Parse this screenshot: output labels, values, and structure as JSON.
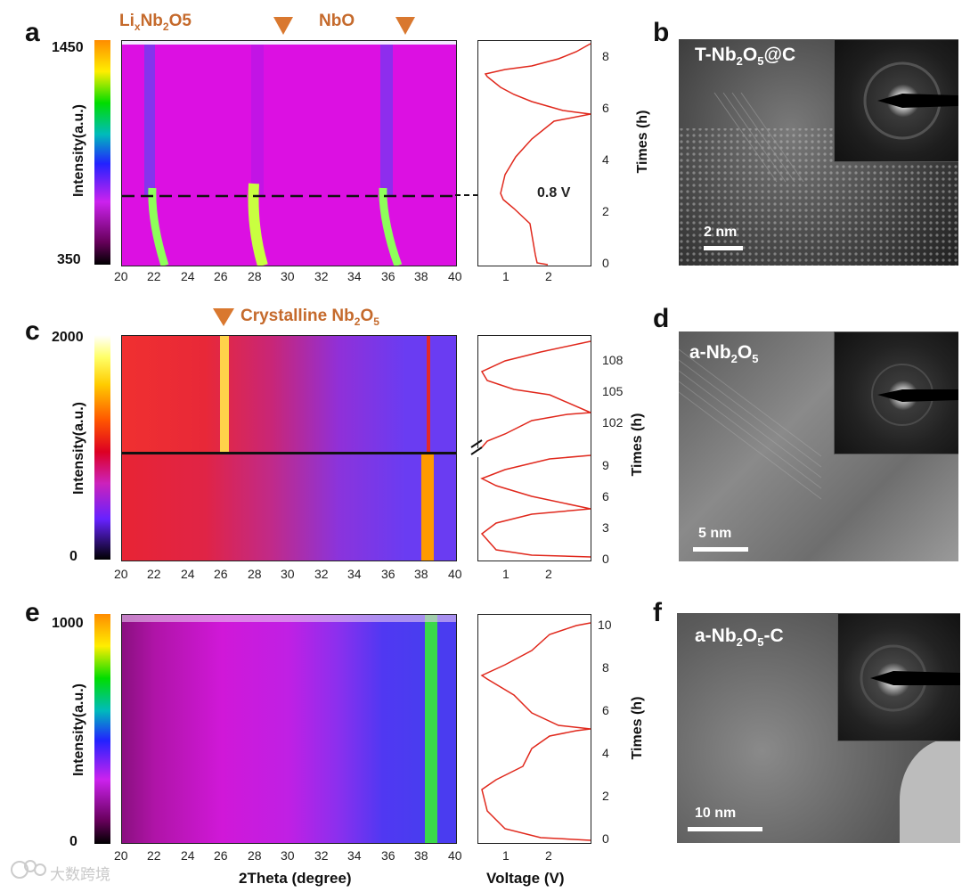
{
  "panels": {
    "a": {
      "letter": "a",
      "cbar_max": "1450",
      "cbar_min": "350",
      "cbar_label": "Intensity(a.u.)",
      "ann_lixnb": "Li",
      "ann_lixnb_sub": "x",
      "ann_lixnb_mid": "Nb",
      "ann_lixnb_sub2": "2",
      "ann_lixnb_end": "O5",
      "ann_nbo": "NbO",
      "ann_08v": "0.8 V",
      "x_ticks": [
        "20",
        "22",
        "24",
        "26",
        "28",
        "30",
        "32",
        "34",
        "36",
        "38",
        "40"
      ],
      "time_ticks": [
        "0",
        "2",
        "4",
        "6",
        "8"
      ],
      "volt_ticks": [
        "1",
        "2"
      ],
      "time_label": "Times (h)"
    },
    "b": {
      "letter": "b",
      "label_main": "T-Nb",
      "label_sub1": "2",
      "label_mid": "O",
      "label_sub2": "5",
      "label_end": "@C",
      "scale": "2 nm"
    },
    "c": {
      "letter": "c",
      "cbar_max": "2000",
      "cbar_min": "0",
      "cbar_label": "Intensity(a.u.)",
      "ann_main": "Crystalline Nb",
      "ann_sub1": "2",
      "ann_mid": "O",
      "ann_sub2": "5",
      "x_ticks": [
        "20",
        "22",
        "24",
        "26",
        "28",
        "30",
        "32",
        "34",
        "36",
        "38",
        "40"
      ],
      "time_ticks_top": [
        "102",
        "105",
        "108"
      ],
      "time_ticks_bot": [
        "0",
        "3",
        "6",
        "9"
      ],
      "volt_ticks": [
        "1",
        "2"
      ],
      "time_label": "Times (h)"
    },
    "d": {
      "letter": "d",
      "label_main": "a-Nb",
      "label_sub1": "2",
      "label_mid": "O",
      "label_sub2": "5",
      "scale": "5 nm"
    },
    "e": {
      "letter": "e",
      "cbar_max": "1000",
      "cbar_min": "0",
      "cbar_label": "Intensity(a.u.)",
      "x_ticks": [
        "20",
        "22",
        "24",
        "26",
        "28",
        "30",
        "32",
        "34",
        "36",
        "38",
        "40"
      ],
      "time_ticks": [
        "0",
        "2",
        "4",
        "6",
        "8",
        "10"
      ],
      "volt_ticks": [
        "1",
        "2"
      ],
      "time_label": "Times (h)",
      "xlabel": "2Theta (degree)",
      "voltage_label": "Voltage (V)"
    },
    "f": {
      "letter": "f",
      "label_main": "a-Nb",
      "label_sub1": "2",
      "label_mid": "O",
      "label_sub2": "5",
      "label_end": "-C",
      "scale": "10 nm"
    }
  },
  "watermark": "大数跨境",
  "colors": {
    "annotation": "#c56a2c",
    "curve": "#e0281c"
  }
}
